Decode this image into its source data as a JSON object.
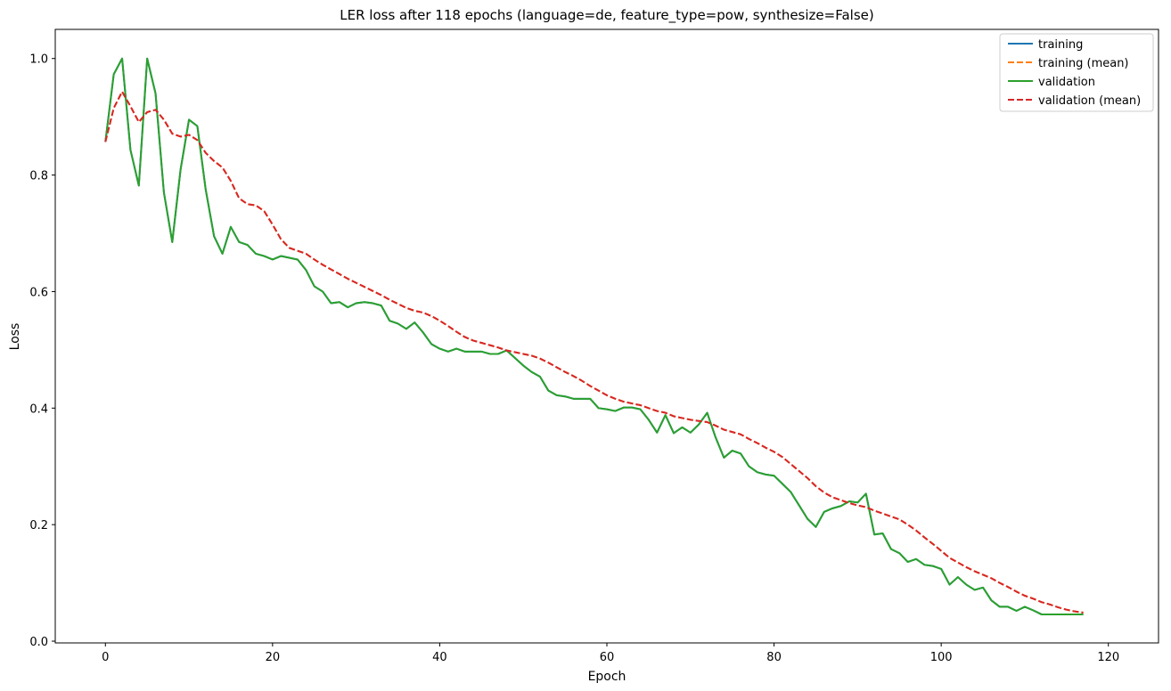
{
  "chart_data": {
    "type": "line",
    "title": "LER loss after 118 epochs (language=de, feature_type=pow, synthesize=False)",
    "xlabel": "Epoch",
    "ylabel": "Loss",
    "xlim": [
      -6,
      126
    ],
    "ylim": [
      -0.003,
      1.05
    ],
    "xticks": [
      0,
      20,
      40,
      60,
      80,
      100,
      120
    ],
    "yticks": [
      0.0,
      0.2,
      0.4,
      0.6,
      0.8,
      1.0
    ],
    "xtick_labels": [
      "0",
      "20",
      "40",
      "60",
      "80",
      "100",
      "120"
    ],
    "ytick_labels": [
      "0.0",
      "0.2",
      "0.4",
      "0.6",
      "0.8",
      "1.0"
    ],
    "grid": false,
    "legend_position": "top-right",
    "series": [
      {
        "name": "training",
        "color": "#1f77b4",
        "dash": "solid",
        "values": [
          0.857,
          0.973,
          1.0,
          0.843,
          0.782,
          1.0,
          0.94,
          0.77,
          0.685,
          0.81,
          0.895,
          0.884,
          0.775,
          0.695,
          0.665,
          0.711,
          0.685,
          0.68,
          0.665,
          0.661,
          0.655,
          0.661,
          0.658,
          0.655,
          0.637,
          0.609,
          0.6,
          0.58,
          0.582,
          0.573,
          0.58,
          0.582,
          0.58,
          0.576,
          0.55,
          0.545,
          0.536,
          0.547,
          0.53,
          0.51,
          0.502,
          0.497,
          0.502,
          0.497,
          0.497,
          0.497,
          0.493,
          0.493,
          0.499,
          0.486,
          0.473,
          0.462,
          0.454,
          0.43,
          0.422,
          0.42,
          0.416,
          0.416,
          0.416,
          0.4,
          0.398,
          0.395,
          0.401,
          0.401,
          0.398,
          0.38,
          0.358,
          0.388,
          0.357,
          0.367,
          0.358,
          0.372,
          0.392,
          0.35,
          0.315,
          0.327,
          0.322,
          0.3,
          0.29,
          0.286,
          0.284,
          0.27,
          0.256,
          0.233,
          0.21,
          0.196,
          0.222,
          0.228,
          0.232,
          0.24,
          0.238,
          0.253,
          0.183,
          0.185,
          0.158,
          0.151,
          0.136,
          0.141,
          0.131,
          0.129,
          0.124,
          0.097,
          0.11,
          0.097,
          0.088,
          0.092,
          0.07,
          0.059,
          0.059,
          0.052,
          0.059,
          0.053,
          0.046,
          0.046,
          0.046,
          0.046,
          0.046,
          0.046
        ]
      },
      {
        "name": "training (mean)",
        "color": "#ff7f0e",
        "dash": "dashed",
        "values": [
          0.857,
          0.915,
          0.943,
          0.918,
          0.891,
          0.908,
          0.912,
          0.895,
          0.871,
          0.866,
          0.869,
          0.86,
          0.838,
          0.824,
          0.813,
          0.79,
          0.76,
          0.75,
          0.748,
          0.738,
          0.715,
          0.69,
          0.675,
          0.67,
          0.665,
          0.655,
          0.646,
          0.638,
          0.63,
          0.622,
          0.615,
          0.608,
          0.601,
          0.594,
          0.586,
          0.579,
          0.572,
          0.567,
          0.564,
          0.558,
          0.55,
          0.541,
          0.531,
          0.522,
          0.516,
          0.512,
          0.508,
          0.504,
          0.499,
          0.496,
          0.493,
          0.49,
          0.485,
          0.478,
          0.47,
          0.462,
          0.455,
          0.447,
          0.438,
          0.43,
          0.422,
          0.416,
          0.411,
          0.408,
          0.405,
          0.4,
          0.395,
          0.392,
          0.386,
          0.383,
          0.38,
          0.378,
          0.376,
          0.37,
          0.363,
          0.359,
          0.355,
          0.347,
          0.34,
          0.332,
          0.325,
          0.316,
          0.304,
          0.292,
          0.28,
          0.266,
          0.255,
          0.247,
          0.242,
          0.237,
          0.233,
          0.23,
          0.224,
          0.219,
          0.214,
          0.209,
          0.2,
          0.19,
          0.178,
          0.167,
          0.155,
          0.143,
          0.135,
          0.127,
          0.12,
          0.114,
          0.108,
          0.1,
          0.093,
          0.085,
          0.078,
          0.073,
          0.067,
          0.063,
          0.058,
          0.054,
          0.051,
          0.049
        ]
      },
      {
        "name": "validation",
        "color": "#2ca02c",
        "dash": "solid",
        "values": [
          0.857,
          0.973,
          1.0,
          0.843,
          0.782,
          1.0,
          0.94,
          0.77,
          0.685,
          0.81,
          0.895,
          0.884,
          0.775,
          0.695,
          0.665,
          0.711,
          0.685,
          0.68,
          0.665,
          0.661,
          0.655,
          0.661,
          0.658,
          0.655,
          0.637,
          0.609,
          0.6,
          0.58,
          0.582,
          0.573,
          0.58,
          0.582,
          0.58,
          0.576,
          0.55,
          0.545,
          0.536,
          0.547,
          0.53,
          0.51,
          0.502,
          0.497,
          0.502,
          0.497,
          0.497,
          0.497,
          0.493,
          0.493,
          0.499,
          0.486,
          0.473,
          0.462,
          0.454,
          0.43,
          0.422,
          0.42,
          0.416,
          0.416,
          0.416,
          0.4,
          0.398,
          0.395,
          0.401,
          0.401,
          0.398,
          0.38,
          0.358,
          0.388,
          0.357,
          0.367,
          0.358,
          0.372,
          0.392,
          0.35,
          0.315,
          0.327,
          0.322,
          0.3,
          0.29,
          0.286,
          0.284,
          0.27,
          0.256,
          0.233,
          0.21,
          0.196,
          0.222,
          0.228,
          0.232,
          0.24,
          0.238,
          0.253,
          0.183,
          0.185,
          0.158,
          0.151,
          0.136,
          0.141,
          0.131,
          0.129,
          0.124,
          0.097,
          0.11,
          0.097,
          0.088,
          0.092,
          0.07,
          0.059,
          0.059,
          0.052,
          0.059,
          0.053,
          0.046,
          0.046,
          0.046,
          0.046,
          0.046,
          0.046
        ]
      },
      {
        "name": "validation (mean)",
        "color": "#d62728",
        "dash": "dashed",
        "values": [
          0.857,
          0.915,
          0.943,
          0.918,
          0.891,
          0.908,
          0.912,
          0.895,
          0.871,
          0.866,
          0.869,
          0.86,
          0.838,
          0.824,
          0.813,
          0.79,
          0.76,
          0.75,
          0.748,
          0.738,
          0.715,
          0.69,
          0.675,
          0.67,
          0.665,
          0.655,
          0.646,
          0.638,
          0.63,
          0.622,
          0.615,
          0.608,
          0.601,
          0.594,
          0.586,
          0.579,
          0.572,
          0.567,
          0.564,
          0.558,
          0.55,
          0.541,
          0.531,
          0.522,
          0.516,
          0.512,
          0.508,
          0.504,
          0.499,
          0.496,
          0.493,
          0.49,
          0.485,
          0.478,
          0.47,
          0.462,
          0.455,
          0.447,
          0.438,
          0.43,
          0.422,
          0.416,
          0.411,
          0.408,
          0.405,
          0.4,
          0.395,
          0.392,
          0.386,
          0.383,
          0.38,
          0.378,
          0.376,
          0.37,
          0.363,
          0.359,
          0.355,
          0.347,
          0.34,
          0.332,
          0.325,
          0.316,
          0.304,
          0.292,
          0.28,
          0.266,
          0.255,
          0.247,
          0.242,
          0.237,
          0.233,
          0.23,
          0.224,
          0.219,
          0.214,
          0.209,
          0.2,
          0.19,
          0.178,
          0.167,
          0.155,
          0.143,
          0.135,
          0.127,
          0.12,
          0.114,
          0.108,
          0.1,
          0.093,
          0.085,
          0.078,
          0.073,
          0.067,
          0.063,
          0.058,
          0.054,
          0.051,
          0.049
        ]
      }
    ]
  }
}
